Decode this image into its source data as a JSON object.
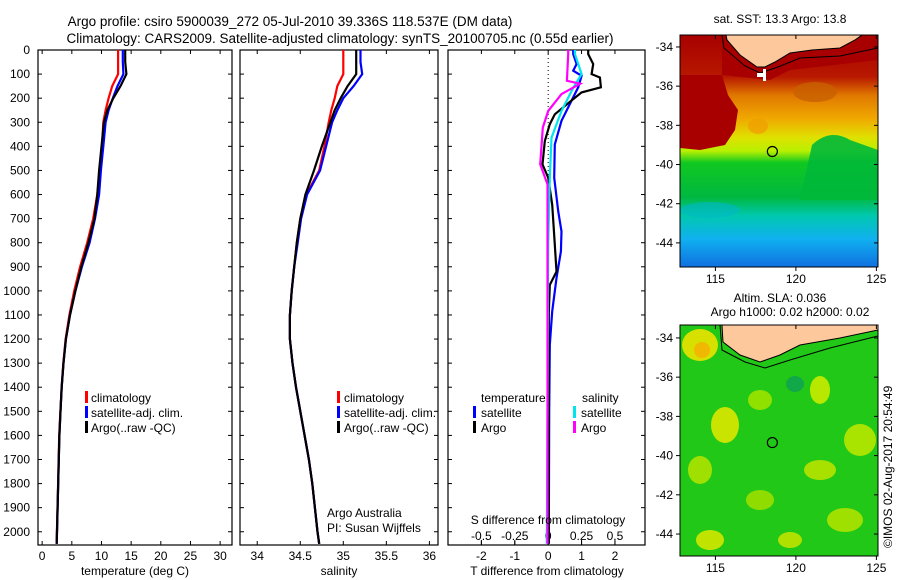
{
  "title": {
    "line1": "Argo profile: csiro 5900039_272 05-Jul-2010 39.336S 118.537E (DM data)",
    "line2": "Climatology: CARS2009. Satellite-adjusted climatology: synTS_20100705.nc (0.55d earlier)"
  },
  "colors": {
    "climatology": "#ff0000",
    "satellite": "#0000ff",
    "argo": "#000000",
    "s_satellite": "#00e5ee",
    "s_argo": "#ff00ff"
  },
  "chart_data": [
    {
      "type": "line",
      "name": "temperature-profile",
      "xlabel": "temperature (deg C)",
      "ylabel": "",
      "xlim": [
        -0.7,
        32
      ],
      "ylim": [
        0,
        2055
      ],
      "y_reversed": true,
      "xticks": [
        0,
        5,
        10,
        15,
        20,
        25,
        30
      ],
      "yticks": [
        0,
        100,
        200,
        300,
        400,
        500,
        600,
        700,
        800,
        900,
        1000,
        1100,
        1200,
        1300,
        1400,
        1500,
        1600,
        1700,
        1800,
        1900,
        2000
      ],
      "depth": [
        0,
        50,
        100,
        150,
        200,
        250,
        300,
        400,
        500,
        600,
        700,
        800,
        900,
        1000,
        1100,
        1200,
        1300,
        1400,
        1500,
        1600,
        1700,
        1800,
        1900,
        2000,
        2050
      ],
      "series": [
        {
          "name": "climatology",
          "color": "#ff0000",
          "values": [
            12.8,
            12.8,
            12.8,
            11.8,
            11.2,
            10.7,
            10.3,
            10.1,
            9.7,
            9.3,
            8.6,
            7.6,
            6.4,
            5.4,
            4.6,
            3.95,
            3.56,
            3.28,
            3.08,
            2.88,
            2.78,
            2.68,
            2.58,
            2.48,
            2.43
          ]
        },
        {
          "name": "satellite-adj. clim.",
          "color": "#0000ff",
          "values": [
            13.6,
            13.6,
            13.7,
            12.7,
            11.9,
            11.2,
            10.7,
            10.3,
            9.9,
            9.6,
            8.9,
            8.0,
            6.7,
            5.6,
            4.7,
            4.0,
            3.6,
            3.3,
            3.1,
            2.9,
            2.8,
            2.7,
            2.6,
            2.5,
            2.45
          ]
        },
        {
          "name": "Argo(..raw -QC)",
          "color": "#000000",
          "values": [
            14.0,
            14.0,
            14.2,
            13.2,
            12.0,
            11.0,
            10.4,
            10.0,
            9.6,
            9.3,
            8.8,
            7.8,
            6.6,
            5.6,
            4.7,
            4.0,
            3.6,
            3.3,
            3.1,
            2.9,
            2.8,
            2.7,
            2.6,
            2.5,
            2.45
          ]
        }
      ]
    },
    {
      "type": "line",
      "name": "salinity-profile",
      "xlabel": "salinity",
      "xlim": [
        33.8,
        36.1
      ],
      "ylim": [
        0,
        2055
      ],
      "y_reversed": true,
      "xticks": [
        34,
        34.5,
        35,
        35.5,
        36
      ],
      "depth": [
        0,
        50,
        100,
        150,
        200,
        250,
        300,
        400,
        500,
        600,
        700,
        800,
        900,
        1000,
        1100,
        1200,
        1300,
        1400,
        1500,
        1600,
        1700,
        1800,
        1900,
        2000,
        2050
      ],
      "series": [
        {
          "name": "climatology",
          "color": "#ff0000",
          "values": [
            35.0,
            35.0,
            35.0,
            34.93,
            34.9,
            34.86,
            34.83,
            34.78,
            34.72,
            34.57,
            34.5,
            34.46,
            34.43,
            34.4,
            34.38,
            34.38,
            34.41,
            34.45,
            34.5,
            34.55,
            34.6,
            34.64,
            34.67,
            34.7,
            34.72
          ]
        },
        {
          "name": "satellite-adj. clim.",
          "color": "#0000ff",
          "values": [
            35.2,
            35.2,
            35.22,
            35.12,
            35.0,
            34.93,
            34.87,
            34.8,
            34.73,
            34.58,
            34.51,
            34.47,
            34.43,
            34.4,
            34.38,
            34.38,
            34.41,
            34.45,
            34.5,
            34.55,
            34.6,
            34.64,
            34.67,
            34.7,
            34.72
          ]
        },
        {
          "name": "Argo(..raw -QC)",
          "color": "#000000",
          "values": [
            35.15,
            35.15,
            35.15,
            35.05,
            34.97,
            34.9,
            34.85,
            34.75,
            34.66,
            34.56,
            34.5,
            34.46,
            34.43,
            34.4,
            34.38,
            34.38,
            34.41,
            34.45,
            34.5,
            34.55,
            34.6,
            34.64,
            34.67,
            34.7,
            34.72
          ]
        }
      ],
      "annotation": [
        "Argo Australia",
        "PI: Susan Wijffels"
      ]
    },
    {
      "type": "line",
      "name": "difference-profile",
      "xlabel": "T difference from climatology",
      "x2label": "S difference from climatology",
      "xlim": [
        -3.0,
        2.9
      ],
      "x2lim": [
        -0.75,
        0.725
      ],
      "ylim": [
        0,
        2055
      ],
      "y_reversed": true,
      "xticks": [
        "-2",
        "-1",
        "0",
        "1",
        "2"
      ],
      "x2ticks": [
        "-0.5",
        "-0.25",
        "0",
        "0.25",
        "0.5"
      ],
      "legend_headers": [
        "temperature",
        "salinity"
      ],
      "series": [
        {
          "name": "satellite",
          "group": "temperature",
          "axis": "T",
          "color": "#0000ff",
          "depth": [
            0,
            17,
            58,
            86,
            107,
            155,
            211,
            294,
            392,
            530,
            669,
            753,
            836,
            947,
            1085,
            1225,
            1500,
            2050
          ],
          "values": [
            0.75,
            0.75,
            0.85,
            0.75,
            1.0,
            0.9,
            0.7,
            0.4,
            0.2,
            0.18,
            0.3,
            0.4,
            0.38,
            0.25,
            0.12,
            0.05,
            0.03,
            0.02
          ]
        },
        {
          "name": "Argo",
          "group": "temperature",
          "axis": "T",
          "color": "#000000",
          "depth": [
            0,
            17,
            58,
            100,
            114,
            155,
            176,
            204,
            267,
            308,
            378,
            475,
            530,
            642,
            808,
            920,
            975,
            1090,
            1500,
            2050
          ],
          "values": [
            1.2,
            1.2,
            1.35,
            1.3,
            1.55,
            1.58,
            1.0,
            0.75,
            0.2,
            0.05,
            -0.1,
            -0.17,
            0.0,
            0.12,
            0.2,
            0.25,
            0.05,
            0.02,
            0.02,
            0.02
          ]
        },
        {
          "name": "satellite",
          "group": "salinity",
          "axis": "S",
          "color": "#00e5ee",
          "depth": [
            0,
            17,
            100,
            155,
            253,
            364,
            530,
            800,
            1500,
            2050
          ],
          "values": [
            0.2,
            0.2,
            0.25,
            0.19,
            0.1,
            0.025,
            0.012,
            0.0,
            -0.005,
            -0.01
          ]
        },
        {
          "name": "Argo",
          "group": "salinity",
          "axis": "S",
          "color": "#ff00ff",
          "depth": [
            0,
            17,
            128,
            140,
            183,
            253,
            322,
            475,
            558,
            800,
            1500,
            2050
          ],
          "values": [
            0.15,
            0.15,
            0.14,
            0.24,
            0.1,
            0.0,
            -0.04,
            -0.06,
            -0.005,
            -0.005,
            -0.005,
            -0.005
          ]
        }
      ]
    }
  ],
  "maps": [
    {
      "title": "sat. SST: 13.3 Argo: 13.8",
      "lat_ticks": [
        "-34",
        "-36",
        "-38",
        "-40",
        "-42",
        "-44"
      ],
      "lon_ticks": [
        "115",
        "120",
        "125"
      ],
      "argo_lon": 118.537,
      "argo_lat": -39.336
    },
    {
      "title": "Altim. SLA: 0.036",
      "subtitle": "Argo h1000: 0.02 h2000: 0.02",
      "lat_ticks": [
        "-34",
        "-36",
        "-38",
        "-40",
        "-42",
        "-44"
      ],
      "lon_ticks": [
        "115",
        "120",
        "125"
      ],
      "argo_lon": 118.537,
      "argo_lat": -39.336
    }
  ],
  "footer": {
    "credit": "©IMOS 02-Aug-2017 20:54:49"
  }
}
